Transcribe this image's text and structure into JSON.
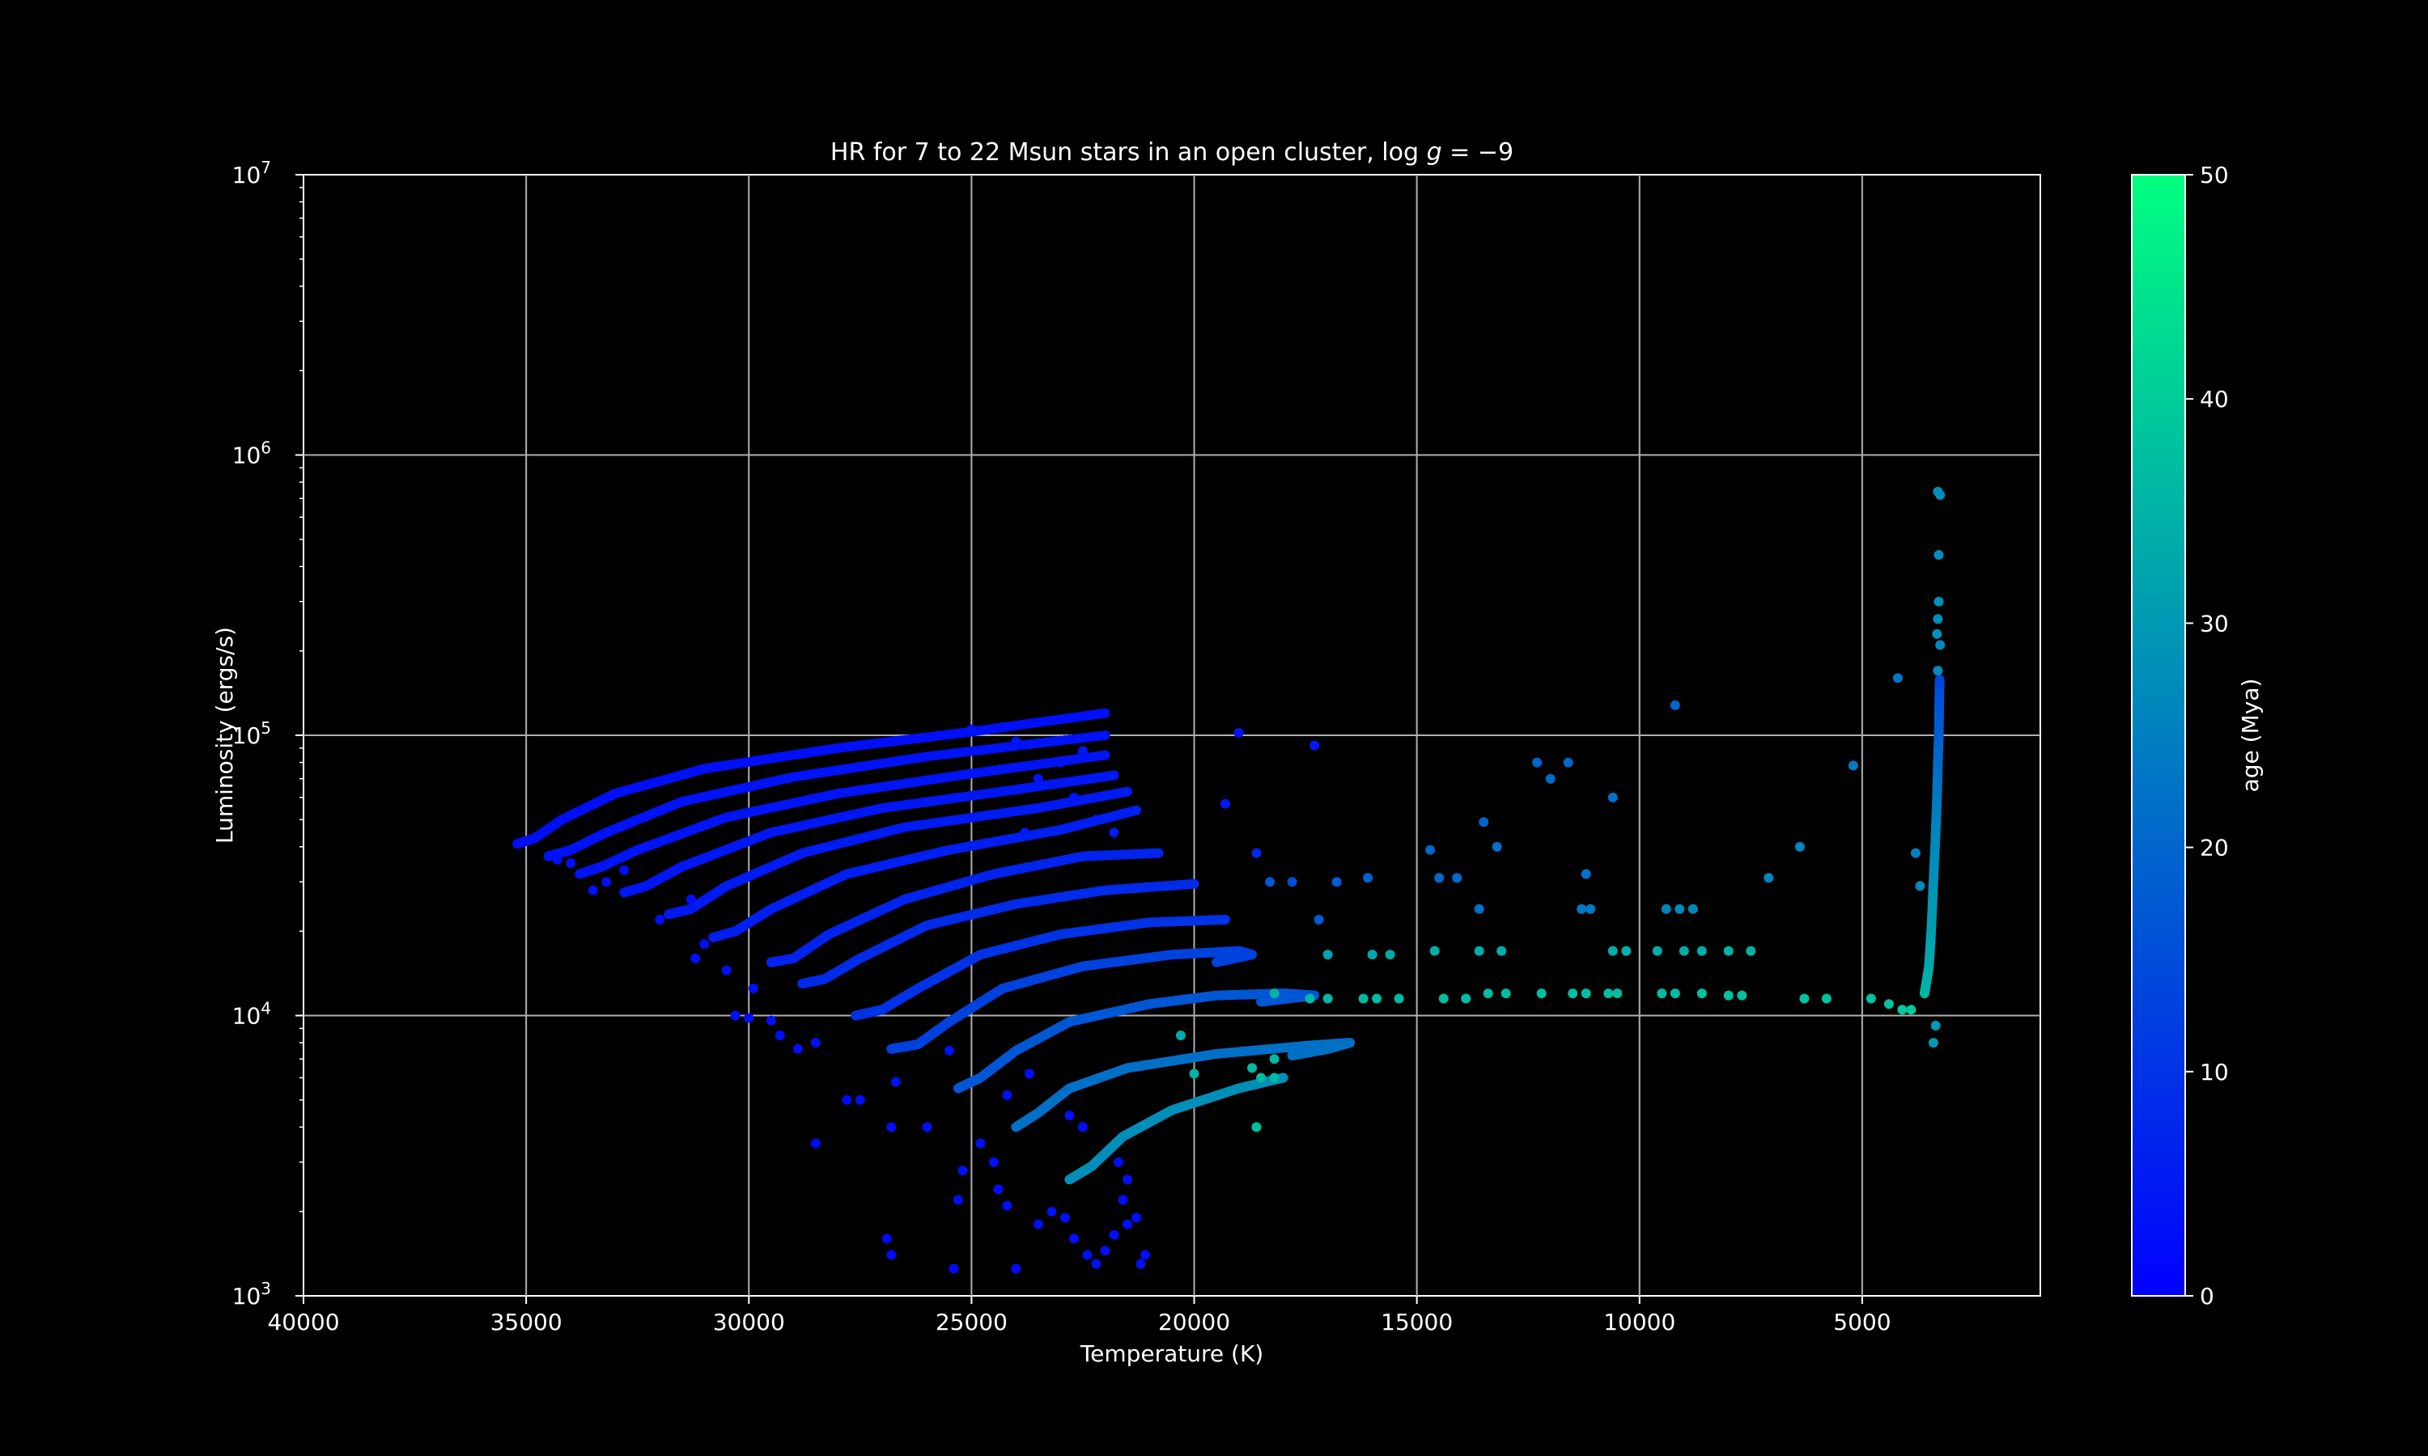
{
  "chart_data": {
    "type": "scatter",
    "title": "HR for 7 to 22 Msun stars in an open cluster, log g = −9",
    "title_prefix": "HR for 7 to 22 Msun stars in an open cluster, log ",
    "title_var": "g",
    "title_suffix": " = −9",
    "xlabel": "Temperature (K)",
    "ylabel": "Luminosity (ergs/s)",
    "xlim": [
      40000,
      1000
    ],
    "ylim": [
      1000,
      10000000
    ],
    "yscale": "log",
    "x_ticks": [
      40000,
      35000,
      30000,
      25000,
      20000,
      15000,
      10000,
      5000
    ],
    "y_ticks": [
      {
        "value": 1000,
        "base": "10",
        "exp": "3"
      },
      {
        "value": 10000,
        "base": "10",
        "exp": "4"
      },
      {
        "value": 100000,
        "base": "10",
        "exp": "5"
      },
      {
        "value": 1000000,
        "base": "10",
        "exp": "6"
      },
      {
        "value": 10000000,
        "base": "10",
        "exp": "7"
      }
    ],
    "grid": true,
    "colorbar": {
      "label": "age (Mya)",
      "range": [
        0,
        50
      ],
      "ticks": [
        0,
        10,
        20,
        30,
        40,
        50
      ],
      "colors": [
        "#0000ff",
        "#00ff80"
      ]
    },
    "tracks": [
      {
        "age": 3,
        "points": [
          [
            35200,
            41000
          ],
          [
            34800,
            43000
          ],
          [
            34200,
            50000
          ],
          [
            33000,
            62000
          ],
          [
            31000,
            76000
          ],
          [
            28000,
            90000
          ],
          [
            25000,
            103000
          ],
          [
            22000,
            120000
          ]
        ]
      },
      {
        "age": 3.5,
        "points": [
          [
            34500,
            37000
          ],
          [
            34000,
            39000
          ],
          [
            33200,
            45000
          ],
          [
            31500,
            58000
          ],
          [
            29000,
            71000
          ],
          [
            26000,
            84000
          ],
          [
            22000,
            100000
          ]
        ]
      },
      {
        "age": 4,
        "points": [
          [
            33800,
            32000
          ],
          [
            33300,
            34000
          ],
          [
            32500,
            39000
          ],
          [
            30500,
            51000
          ],
          [
            28000,
            62000
          ],
          [
            25000,
            73000
          ],
          [
            22000,
            85000
          ]
        ]
      },
      {
        "age": 4.5,
        "points": [
          [
            32800,
            27500
          ],
          [
            32300,
            29000
          ],
          [
            31500,
            34000
          ],
          [
            29500,
            45000
          ],
          [
            27000,
            55000
          ],
          [
            24000,
            64000
          ],
          [
            21800,
            72000
          ]
        ]
      },
      {
        "age": 5,
        "points": [
          [
            31800,
            23000
          ],
          [
            31300,
            24000
          ],
          [
            30500,
            29000
          ],
          [
            28800,
            38000
          ],
          [
            26500,
            47000
          ],
          [
            23500,
            55000
          ],
          [
            21500,
            63000
          ]
        ]
      },
      {
        "age": 6,
        "points": [
          [
            30800,
            19000
          ],
          [
            30300,
            20000
          ],
          [
            29500,
            24000
          ],
          [
            27800,
            32000
          ],
          [
            25500,
            39000
          ],
          [
            23000,
            46000
          ],
          [
            21300,
            54000
          ]
        ]
      },
      {
        "age": 7,
        "points": [
          [
            29500,
            15500
          ],
          [
            29000,
            16000
          ],
          [
            28200,
            19500
          ],
          [
            26500,
            26000
          ],
          [
            24500,
            32000
          ],
          [
            22500,
            37000
          ],
          [
            20800,
            38000
          ]
        ]
      },
      {
        "age": 8.5,
        "points": [
          [
            28800,
            13000
          ],
          [
            28300,
            13500
          ],
          [
            27500,
            16000
          ],
          [
            26000,
            21000
          ],
          [
            24000,
            25000
          ],
          [
            22000,
            28000
          ],
          [
            20000,
            29500
          ]
        ]
      },
      {
        "age": 10,
        "points": [
          [
            27600,
            10000
          ],
          [
            27000,
            10500
          ],
          [
            26200,
            12500
          ],
          [
            24800,
            16500
          ],
          [
            23000,
            19500
          ],
          [
            21000,
            21500
          ],
          [
            19300,
            22000
          ]
        ]
      },
      {
        "age": 13,
        "points": [
          [
            26800,
            7600
          ],
          [
            26200,
            7900
          ],
          [
            25500,
            9500
          ],
          [
            24300,
            12500
          ],
          [
            22500,
            15000
          ],
          [
            20500,
            16500
          ],
          [
            19000,
            17000
          ],
          [
            18700,
            16500
          ],
          [
            19500,
            15500
          ]
        ]
      },
      {
        "age": 17,
        "points": [
          [
            25300,
            5500
          ],
          [
            24800,
            6000
          ],
          [
            24000,
            7500
          ],
          [
            22800,
            9500
          ],
          [
            21000,
            11000
          ],
          [
            19500,
            11800
          ],
          [
            18000,
            12000
          ],
          [
            17300,
            11800
          ],
          [
            18500,
            11200
          ]
        ]
      },
      {
        "age": 22,
        "points": [
          [
            24000,
            4000
          ],
          [
            23500,
            4500
          ],
          [
            22800,
            5500
          ],
          [
            21500,
            6500
          ],
          [
            19500,
            7300
          ],
          [
            17500,
            7800
          ],
          [
            16500,
            8000
          ],
          [
            17000,
            7600
          ],
          [
            17800,
            7200
          ]
        ]
      },
      {
        "age": 28,
        "points": [
          [
            22800,
            2600
          ],
          [
            22300,
            2900
          ],
          [
            21600,
            3700
          ],
          [
            20500,
            4600
          ],
          [
            19000,
            5500
          ],
          [
            18000,
            6000
          ]
        ]
      }
    ],
    "points": [
      [
        26900,
        1600,
        2
      ],
      [
        26800,
        1400,
        2
      ],
      [
        25400,
        1250,
        2
      ],
      [
        24000,
        1250,
        2
      ],
      [
        28500,
        3500,
        2
      ],
      [
        27800,
        5000,
        2
      ],
      [
        27500,
        5000,
        3
      ],
      [
        26800,
        4000,
        3
      ],
      [
        26000,
        4000,
        3
      ],
      [
        25200,
        2800,
        3
      ],
      [
        25300,
        2200,
        3
      ],
      [
        24800,
        3500,
        3
      ],
      [
        24500,
        3000,
        3
      ],
      [
        24400,
        2400,
        3
      ],
      [
        24200,
        2100,
        3
      ],
      [
        23500,
        1800,
        3
      ],
      [
        23200,
        2000,
        3
      ],
      [
        22900,
        1900,
        3
      ],
      [
        22700,
        1600,
        3
      ],
      [
        22400,
        1400,
        3
      ],
      [
        22200,
        1300,
        3
      ],
      [
        22000,
        1450,
        3
      ],
      [
        21800,
        1650,
        3
      ],
      [
        21500,
        1800,
        3
      ],
      [
        21300,
        1900,
        3
      ],
      [
        21200,
        1300,
        3
      ],
      [
        21100,
        1400,
        3
      ],
      [
        21600,
        2200,
        3
      ],
      [
        21500,
        2600,
        3
      ],
      [
        21700,
        3000,
        3
      ],
      [
        22800,
        4400,
        3
      ],
      [
        22500,
        4000,
        3
      ],
      [
        23700,
        6200,
        3
      ],
      [
        24200,
        5200,
        3
      ],
      [
        25500,
        7500,
        3
      ],
      [
        26700,
        5800,
        3
      ],
      [
        29500,
        9600,
        3
      ],
      [
        29300,
        8500,
        3
      ],
      [
        28900,
        7600,
        3
      ],
      [
        28500,
        8000,
        3
      ],
      [
        30300,
        10000,
        3
      ],
      [
        30000,
        9800,
        3
      ],
      [
        29900,
        12500,
        3
      ],
      [
        30500,
        14500,
        3
      ],
      [
        31000,
        18000,
        3
      ],
      [
        31200,
        16000,
        3
      ],
      [
        32000,
        22000,
        3
      ],
      [
        31300,
        26000,
        3
      ],
      [
        33200,
        30000,
        3
      ],
      [
        32800,
        33000,
        3
      ],
      [
        33500,
        28000,
        3
      ],
      [
        34000,
        35000,
        3
      ],
      [
        34300,
        36000,
        3
      ],
      [
        25000,
        105000,
        4
      ],
      [
        24000,
        95000,
        4
      ],
      [
        22500,
        88000,
        4
      ],
      [
        23000,
        80000,
        4
      ],
      [
        23500,
        70000,
        4
      ],
      [
        22700,
        60000,
        4
      ],
      [
        23800,
        45000,
        5
      ],
      [
        22200,
        50000,
        5
      ],
      [
        21800,
        45000,
        5
      ],
      [
        19300,
        57000,
        5
      ],
      [
        19000,
        102000,
        4
      ],
      [
        17300,
        92000,
        5
      ],
      [
        18600,
        38000,
        8
      ],
      [
        17800,
        30000,
        15
      ],
      [
        18300,
        30000,
        17
      ],
      [
        17200,
        22000,
        18
      ],
      [
        16800,
        30000,
        18
      ],
      [
        16100,
        31000,
        19
      ],
      [
        14700,
        39000,
        20
      ],
      [
        14500,
        31000,
        21
      ],
      [
        14100,
        31000,
        21
      ],
      [
        13500,
        49000,
        20
      ],
      [
        13600,
        24000,
        22
      ],
      [
        13200,
        40000,
        22
      ],
      [
        12300,
        80000,
        20
      ],
      [
        12000,
        70000,
        21
      ],
      [
        11600,
        80000,
        20
      ],
      [
        11200,
        32000,
        23
      ],
      [
        11300,
        24000,
        24
      ],
      [
        11100,
        24000,
        24
      ],
      [
        10600,
        60000,
        22
      ],
      [
        9200,
        128000,
        20
      ],
      [
        9400,
        24000,
        26
      ],
      [
        9100,
        24000,
        27
      ],
      [
        8800,
        24000,
        27
      ],
      [
        6400,
        40000,
        26
      ],
      [
        7100,
        31000,
        26
      ],
      [
        5200,
        78000,
        24
      ],
      [
        4200,
        160000,
        23
      ],
      [
        3800,
        38000,
        25
      ],
      [
        3700,
        29000,
        27
      ],
      [
        17000,
        16500,
        32
      ],
      [
        16000,
        16500,
        33
      ],
      [
        15600,
        16500,
        33
      ],
      [
        14600,
        17000,
        34
      ],
      [
        13600,
        17000,
        34
      ],
      [
        13100,
        17000,
        34
      ],
      [
        10300,
        17000,
        34
      ],
      [
        10600,
        17000,
        34
      ],
      [
        9600,
        17000,
        34
      ],
      [
        9000,
        17000,
        34
      ],
      [
        8600,
        17000,
        34
      ],
      [
        8000,
        17000,
        35
      ],
      [
        7500,
        17000,
        35
      ],
      [
        18200,
        12000,
        35
      ],
      [
        17400,
        11500,
        36
      ],
      [
        17000,
        11500,
        36
      ],
      [
        16200,
        11500,
        36
      ],
      [
        15900,
        11500,
        36
      ],
      [
        15400,
        11500,
        36
      ],
      [
        14400,
        11500,
        37
      ],
      [
        13900,
        11500,
        37
      ],
      [
        13400,
        12000,
        37
      ],
      [
        13000,
        12000,
        37
      ],
      [
        12200,
        12000,
        37
      ],
      [
        11500,
        12000,
        37
      ],
      [
        11200,
        12000,
        37
      ],
      [
        10700,
        12000,
        37
      ],
      [
        10500,
        12000,
        37
      ],
      [
        9500,
        12000,
        37
      ],
      [
        9200,
        12000,
        37
      ],
      [
        8600,
        12000,
        38
      ],
      [
        8000,
        11800,
        38
      ],
      [
        7700,
        11800,
        38
      ],
      [
        6300,
        11500,
        38
      ],
      [
        5800,
        11500,
        38
      ],
      [
        4800,
        11500,
        38
      ],
      [
        4400,
        11000,
        38
      ],
      [
        4100,
        10500,
        39
      ],
      [
        3900,
        10500,
        39
      ],
      [
        20000,
        6200,
        35
      ],
      [
        18200,
        6000,
        36
      ],
      [
        18200,
        7000,
        36
      ],
      [
        18500,
        6000,
        36
      ],
      [
        18600,
        4000,
        37
      ],
      [
        20300,
        8500,
        34
      ],
      [
        18700,
        6500,
        36
      ],
      [
        3350,
        9200,
        30
      ],
      [
        3400,
        8000,
        30
      ],
      [
        3300,
        740000,
        28
      ],
      [
        3250,
        720000,
        28
      ],
      [
        3280,
        440000,
        28
      ],
      [
        3280,
        300000,
        28
      ],
      [
        3300,
        260000,
        28
      ],
      [
        3320,
        230000,
        28
      ],
      [
        3250,
        210000,
        27
      ],
      [
        3300,
        170000,
        27
      ]
    ],
    "red_giant_branch": {
      "age_range": [
        14,
        36
      ],
      "points": [
        [
          3600,
          12000
        ],
        [
          3500,
          15000
        ],
        [
          3450,
          20000
        ],
        [
          3400,
          30000
        ],
        [
          3350,
          45000
        ],
        [
          3320,
          60000
        ],
        [
          3300,
          80000
        ],
        [
          3280,
          100000
        ],
        [
          3270,
          130000
        ],
        [
          3260,
          160000
        ]
      ]
    }
  }
}
